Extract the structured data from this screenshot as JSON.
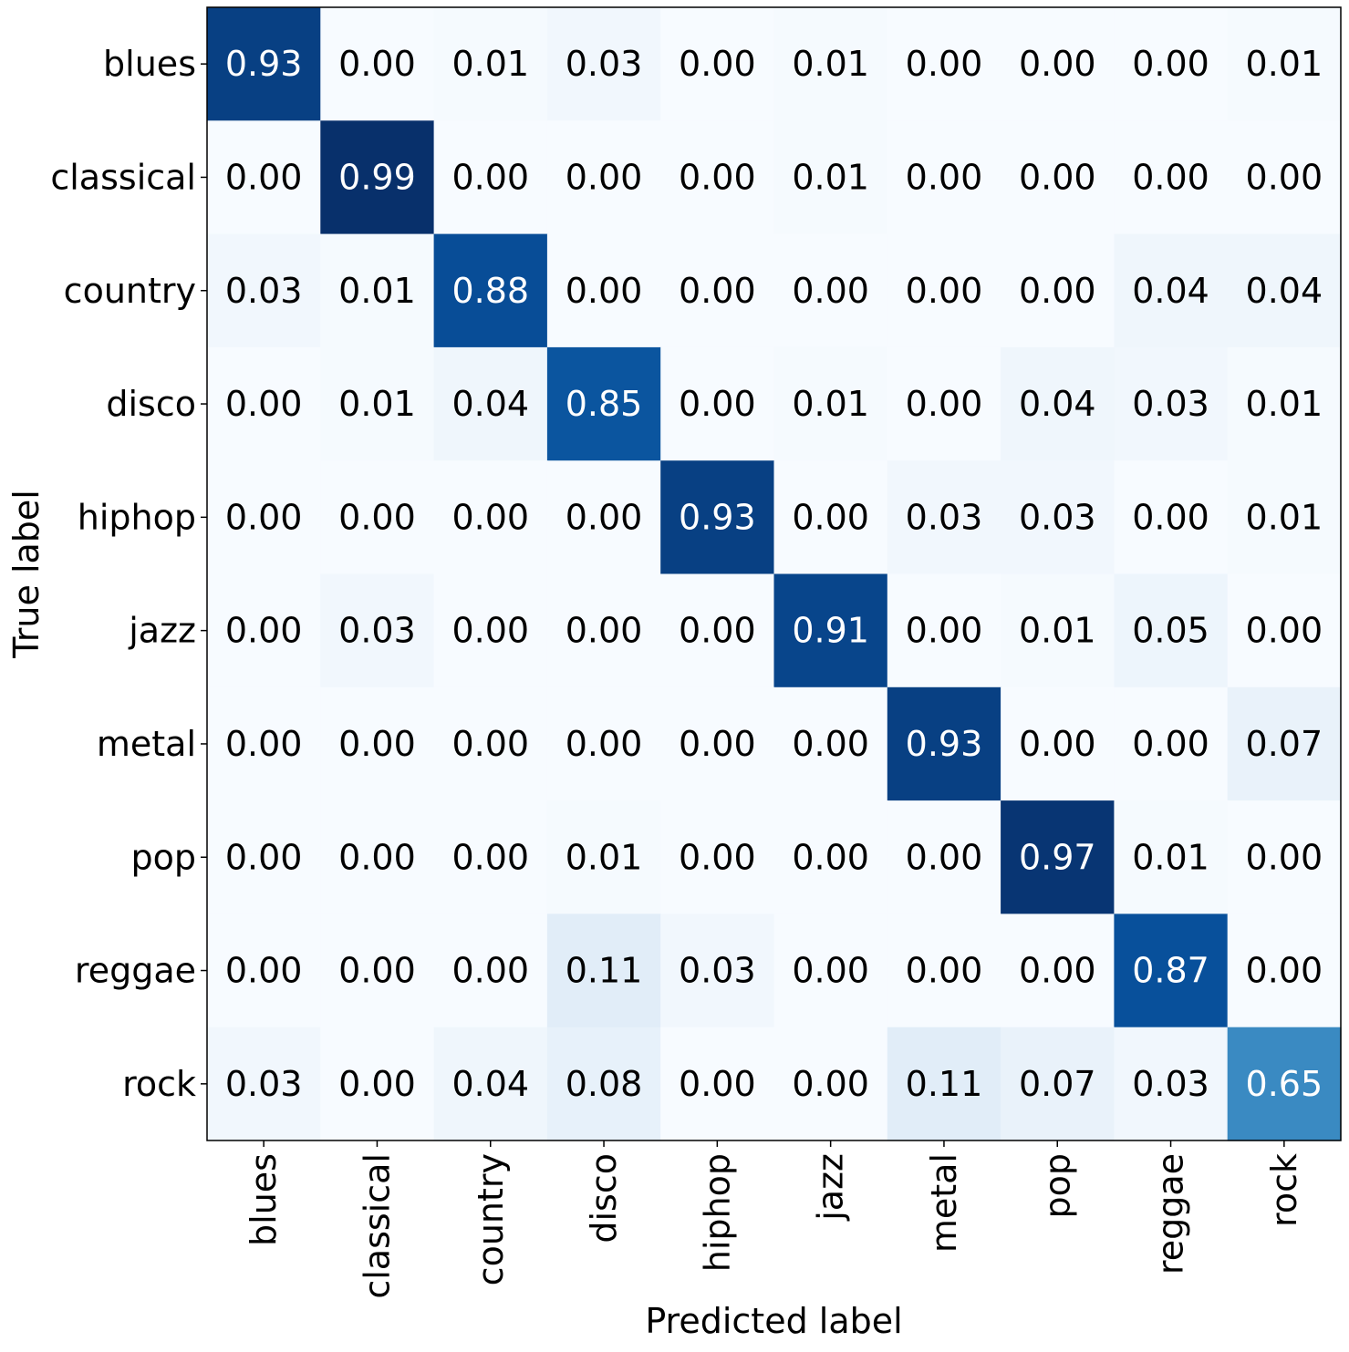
{
  "chart_data": {
    "type": "heatmap",
    "title": "",
    "xlabel": "Predicted label",
    "ylabel": "True label",
    "x_categories": [
      "blues",
      "classical",
      "country",
      "disco",
      "hiphop",
      "jazz",
      "metal",
      "pop",
      "reggae",
      "rock"
    ],
    "y_categories": [
      "blues",
      "classical",
      "country",
      "disco",
      "hiphop",
      "jazz",
      "metal",
      "pop",
      "reggae",
      "rock"
    ],
    "values": [
      [
        0.93,
        0.0,
        0.01,
        0.03,
        0.0,
        0.01,
        0.0,
        0.0,
        0.0,
        0.01
      ],
      [
        0.0,
        0.99,
        0.0,
        0.0,
        0.0,
        0.01,
        0.0,
        0.0,
        0.0,
        0.0
      ],
      [
        0.03,
        0.01,
        0.88,
        0.0,
        0.0,
        0.0,
        0.0,
        0.0,
        0.04,
        0.04
      ],
      [
        0.0,
        0.01,
        0.04,
        0.85,
        0.0,
        0.01,
        0.0,
        0.04,
        0.03,
        0.01
      ],
      [
        0.0,
        0.0,
        0.0,
        0.0,
        0.93,
        0.0,
        0.03,
        0.03,
        0.0,
        0.01
      ],
      [
        0.0,
        0.03,
        0.0,
        0.0,
        0.0,
        0.91,
        0.0,
        0.01,
        0.05,
        0.0
      ],
      [
        0.0,
        0.0,
        0.0,
        0.0,
        0.0,
        0.0,
        0.93,
        0.0,
        0.0,
        0.07
      ],
      [
        0.0,
        0.0,
        0.0,
        0.01,
        0.0,
        0.0,
        0.0,
        0.97,
        0.01,
        0.0
      ],
      [
        0.0,
        0.0,
        0.0,
        0.11,
        0.03,
        0.0,
        0.0,
        0.0,
        0.87,
        0.0
      ],
      [
        0.03,
        0.0,
        0.04,
        0.08,
        0.0,
        0.0,
        0.11,
        0.07,
        0.03,
        0.65
      ]
    ],
    "colormap": "Blues",
    "value_format": "0.00",
    "text_color_dark": "#000000",
    "text_color_light": "#ffffff"
  }
}
